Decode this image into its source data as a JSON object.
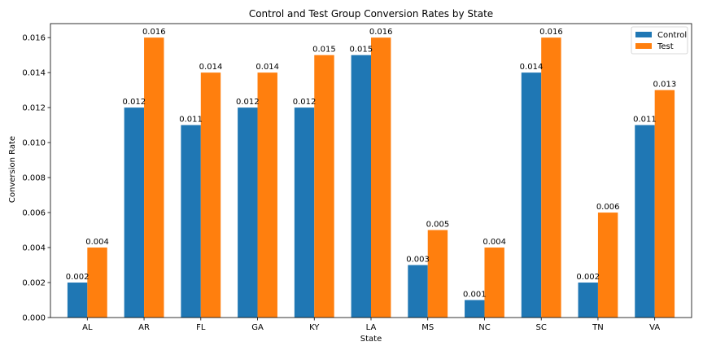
{
  "chart_data": {
    "type": "bar",
    "title": "Control and Test Group Conversion Rates by State",
    "xlabel": "State",
    "ylabel": "Conversion Rate",
    "categories": [
      "AL",
      "AR",
      "FL",
      "GA",
      "KY",
      "LA",
      "MS",
      "NC",
      "SC",
      "TN",
      "VA"
    ],
    "series": [
      {
        "name": "Control",
        "color": "#1f77b4",
        "values": [
          0.002,
          0.012,
          0.011,
          0.012,
          0.012,
          0.015,
          0.003,
          0.001,
          0.014,
          0.002,
          0.011
        ],
        "labels": [
          "0.002",
          "0.012",
          "0.011",
          "0.012",
          "0.012",
          "0.015",
          "0.003",
          "0.001",
          "0.014",
          "0.002",
          "0.011"
        ]
      },
      {
        "name": "Test",
        "color": "#ff7f0e",
        "values": [
          0.004,
          0.016,
          0.014,
          0.014,
          0.015,
          0.016,
          0.005,
          0.004,
          0.016,
          0.006,
          0.013
        ],
        "labels": [
          "0.004",
          "0.016",
          "0.014",
          "0.014",
          "0.015",
          "0.016",
          "0.005",
          "0.004",
          "0.016",
          "0.006",
          "0.013"
        ]
      }
    ],
    "ylim": [
      0,
      0.0168
    ],
    "yticks": [
      0.0,
      0.002,
      0.004,
      0.006,
      0.008,
      0.01,
      0.012,
      0.014,
      0.016
    ],
    "ytick_labels": [
      "0.000",
      "0.002",
      "0.004",
      "0.006",
      "0.008",
      "0.010",
      "0.012",
      "0.014",
      "0.016"
    ],
    "grid": false,
    "legend_position": "top-right"
  }
}
